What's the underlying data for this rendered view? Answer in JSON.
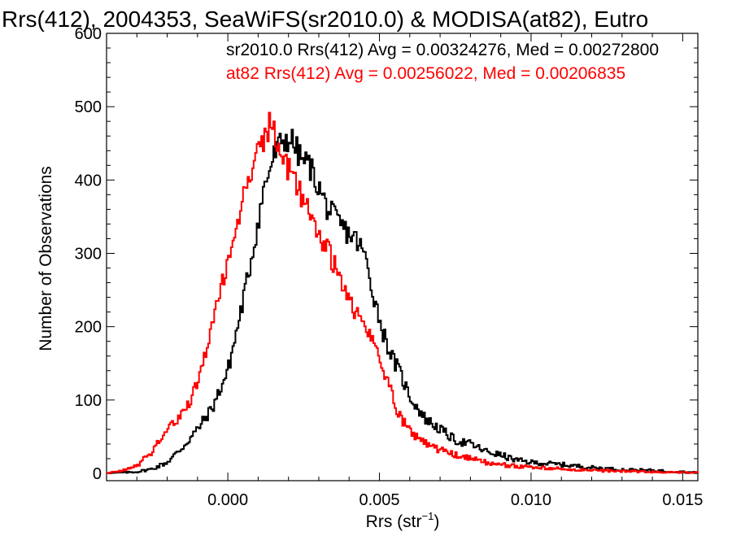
{
  "chart_data": {
    "type": "line",
    "title": "Rrs(412), 2004353, SeaWiFS(sr2010.0) & MODISA(at82), Eutro",
    "xlabel_main": "Rrs (str",
    "xlabel_sup": "−1",
    "xlabel_end": ")",
    "ylabel": "Number of Observations",
    "xlim": [
      -0.004,
      0.0155
    ],
    "ylim": [
      -10,
      600
    ],
    "x_ticks": [
      0.0,
      0.005,
      0.01,
      0.015
    ],
    "x_tick_labels": [
      "0.000",
      "0.005",
      "0.010",
      "0.015"
    ],
    "y_ticks": [
      0,
      100,
      200,
      300,
      400,
      500,
      600
    ],
    "y_tick_labels": [
      "0",
      "100",
      "200",
      "300",
      "400",
      "500",
      "600"
    ],
    "grid": false,
    "legend_position": "top",
    "series": [
      {
        "label": "sr2010.0 Rrs(412) Avg = 0.00324276, Med = 0.00272800",
        "color": "#000000",
        "points": [
          [
            -0.004,
            0
          ],
          [
            -0.003,
            2
          ],
          [
            -0.0025,
            6
          ],
          [
            -0.002,
            15
          ],
          [
            -0.0015,
            35
          ],
          [
            -0.001,
            60
          ],
          [
            -0.0005,
            90
          ],
          [
            0.0,
            140
          ],
          [
            0.0003,
            195
          ],
          [
            0.0006,
            255
          ],
          [
            0.0009,
            320
          ],
          [
            0.0012,
            390
          ],
          [
            0.0015,
            430
          ],
          [
            0.0018,
            455
          ],
          [
            0.0021,
            455
          ],
          [
            0.0024,
            430
          ],
          [
            0.0027,
            420
          ],
          [
            0.003,
            390
          ],
          [
            0.0033,
            360
          ],
          [
            0.0036,
            345
          ],
          [
            0.0039,
            330
          ],
          [
            0.0042,
            320
          ],
          [
            0.0045,
            300
          ],
          [
            0.0048,
            245
          ],
          [
            0.0051,
            195
          ],
          [
            0.0054,
            160
          ],
          [
            0.0057,
            135
          ],
          [
            0.006,
            105
          ],
          [
            0.0065,
            75
          ],
          [
            0.007,
            60
          ],
          [
            0.0075,
            45
          ],
          [
            0.008,
            40
          ],
          [
            0.0085,
            30
          ],
          [
            0.009,
            25
          ],
          [
            0.0095,
            18
          ],
          [
            0.01,
            15
          ],
          [
            0.011,
            12
          ],
          [
            0.012,
            8
          ],
          [
            0.013,
            5
          ],
          [
            0.014,
            4
          ],
          [
            0.015,
            2
          ],
          [
            0.0155,
            1
          ]
        ]
      },
      {
        "label": "at82 Rrs(412) Avg = 0.00256022, Med = 0.00206835",
        "color": "#ff0000",
        "points": [
          [
            -0.004,
            0
          ],
          [
            -0.0035,
            3
          ],
          [
            -0.003,
            10
          ],
          [
            -0.0025,
            30
          ],
          [
            -0.002,
            60
          ],
          [
            -0.0015,
            80
          ],
          [
            -0.001,
            120
          ],
          [
            -0.0006,
            190
          ],
          [
            -0.0003,
            240
          ],
          [
            0.0,
            290
          ],
          [
            0.0003,
            340
          ],
          [
            0.0006,
            390
          ],
          [
            0.0009,
            430
          ],
          [
            0.0012,
            455
          ],
          [
            0.0014,
            478
          ],
          [
            0.0016,
            455
          ],
          [
            0.0019,
            420
          ],
          [
            0.0022,
            400
          ],
          [
            0.0025,
            375
          ],
          [
            0.0028,
            345
          ],
          [
            0.0031,
            320
          ],
          [
            0.0034,
            295
          ],
          [
            0.0037,
            265
          ],
          [
            0.004,
            235
          ],
          [
            0.0043,
            215
          ],
          [
            0.0046,
            195
          ],
          [
            0.0049,
            170
          ],
          [
            0.0052,
            135
          ],
          [
            0.0055,
            95
          ],
          [
            0.0058,
            70
          ],
          [
            0.0062,
            50
          ],
          [
            0.0066,
            40
          ],
          [
            0.007,
            32
          ],
          [
            0.0075,
            25
          ],
          [
            0.008,
            20
          ],
          [
            0.0085,
            15
          ],
          [
            0.009,
            12
          ],
          [
            0.0095,
            10
          ],
          [
            0.01,
            8
          ],
          [
            0.011,
            6
          ],
          [
            0.012,
            4
          ],
          [
            0.013,
            3
          ],
          [
            0.014,
            2
          ],
          [
            0.015,
            1
          ],
          [
            0.0155,
            1
          ]
        ]
      }
    ]
  }
}
